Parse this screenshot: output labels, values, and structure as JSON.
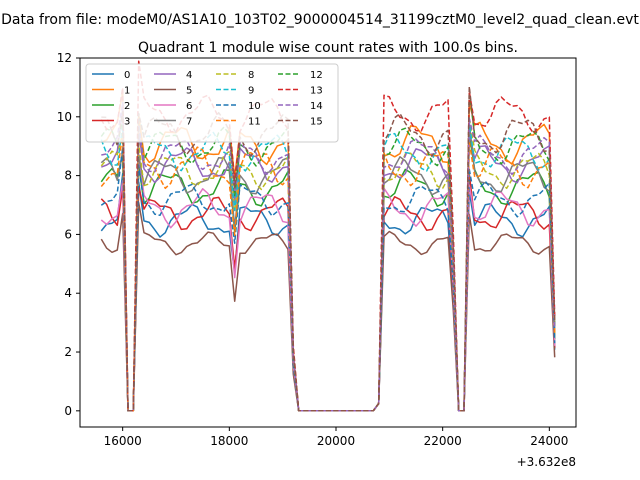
{
  "figure": {
    "suptitle": "Data from file: modeM0/AS1A10_103T02_9000004514_31199cztM0_level2_quad_clean.evt",
    "title": "Quadrant 1 module wise count rates with 100.0s bins.",
    "offset_label": "+3.632e8"
  },
  "chart_data": {
    "type": "line",
    "title": "Quadrant 1 module wise count rates with 100.0s bins.",
    "xlabel": "",
    "ylabel": "",
    "x_offset": 363200000,
    "xlim": [
      15200,
      24500
    ],
    "ylim": [
      -0.55,
      12
    ],
    "xticks": [
      16000,
      18000,
      20000,
      22000,
      24000
    ],
    "yticks": [
      0,
      2,
      4,
      6,
      8,
      10,
      12
    ],
    "xtick_labels": [
      "16000",
      "18000",
      "20000",
      "22000",
      "24000"
    ],
    "ytick_labels": [
      "0",
      "2",
      "4",
      "6",
      "8",
      "10",
      "12"
    ],
    "grid": false,
    "legend_position": "top-left",
    "legend_columns": 4,
    "x_segments": [
      [
        15600,
        16000
      ],
      [
        16100,
        16200
      ],
      [
        16300,
        19200
      ],
      [
        19300,
        20700
      ],
      [
        20800,
        22200
      ],
      [
        22300,
        22400
      ],
      [
        22500,
        24100
      ]
    ],
    "series": [
      {
        "name": "0",
        "style": "solid",
        "color": "#1f77b4",
        "base": 6.5,
        "amp": 0.45,
        "phase": 0.0
      },
      {
        "name": "1",
        "style": "solid",
        "color": "#ff7f0e",
        "base": 9.1,
        "amp": 0.55,
        "phase": 1.3
      },
      {
        "name": "2",
        "style": "solid",
        "color": "#2ca02c",
        "base": 7.6,
        "amp": 0.5,
        "phase": 2.1
      },
      {
        "name": "3",
        "style": "solid",
        "color": "#d62728",
        "base": 6.7,
        "amp": 0.45,
        "phase": 3.4
      },
      {
        "name": "4",
        "style": "solid",
        "color": "#9467bd",
        "base": 8.4,
        "amp": 0.5,
        "phase": 0.7
      },
      {
        "name": "5",
        "style": "solid",
        "color": "#8c564b",
        "base": 5.7,
        "amp": 0.3,
        "phase": 4.2
      },
      {
        "name": "6",
        "style": "solid",
        "color": "#e377c2",
        "base": 6.9,
        "amp": 0.5,
        "phase": 5.0
      },
      {
        "name": "7",
        "style": "solid",
        "color": "#7f7f7f",
        "base": 8.0,
        "amp": 0.5,
        "phase": 2.8
      },
      {
        "name": "8",
        "style": "dashed",
        "color": "#bcbd22",
        "base": 8.2,
        "amp": 0.5,
        "phase": 1.9
      },
      {
        "name": "9",
        "style": "dashed",
        "color": "#17becf",
        "base": 8.8,
        "amp": 0.5,
        "phase": 3.9
      },
      {
        "name": "10",
        "style": "dashed",
        "color": "#1f77b4",
        "base": 7.2,
        "amp": 0.45,
        "phase": 0.4
      },
      {
        "name": "11",
        "style": "dashed",
        "color": "#ff7f0e",
        "base": 8.3,
        "amp": 0.55,
        "phase": 5.6
      },
      {
        "name": "12",
        "style": "dashed",
        "color": "#2ca02c",
        "base": 9.0,
        "amp": 0.5,
        "phase": 2.5
      },
      {
        "name": "13",
        "style": "dashed",
        "color": "#d62728",
        "base": 10.1,
        "amp": 0.5,
        "phase": 4.7
      },
      {
        "name": "14",
        "style": "dashed",
        "color": "#9467bd",
        "base": 8.7,
        "amp": 0.5,
        "phase": 1.1
      },
      {
        "name": "15",
        "style": "dashed",
        "color": "#8c564b",
        "base": 9.4,
        "amp": 0.55,
        "phase": 3.1
      }
    ]
  }
}
